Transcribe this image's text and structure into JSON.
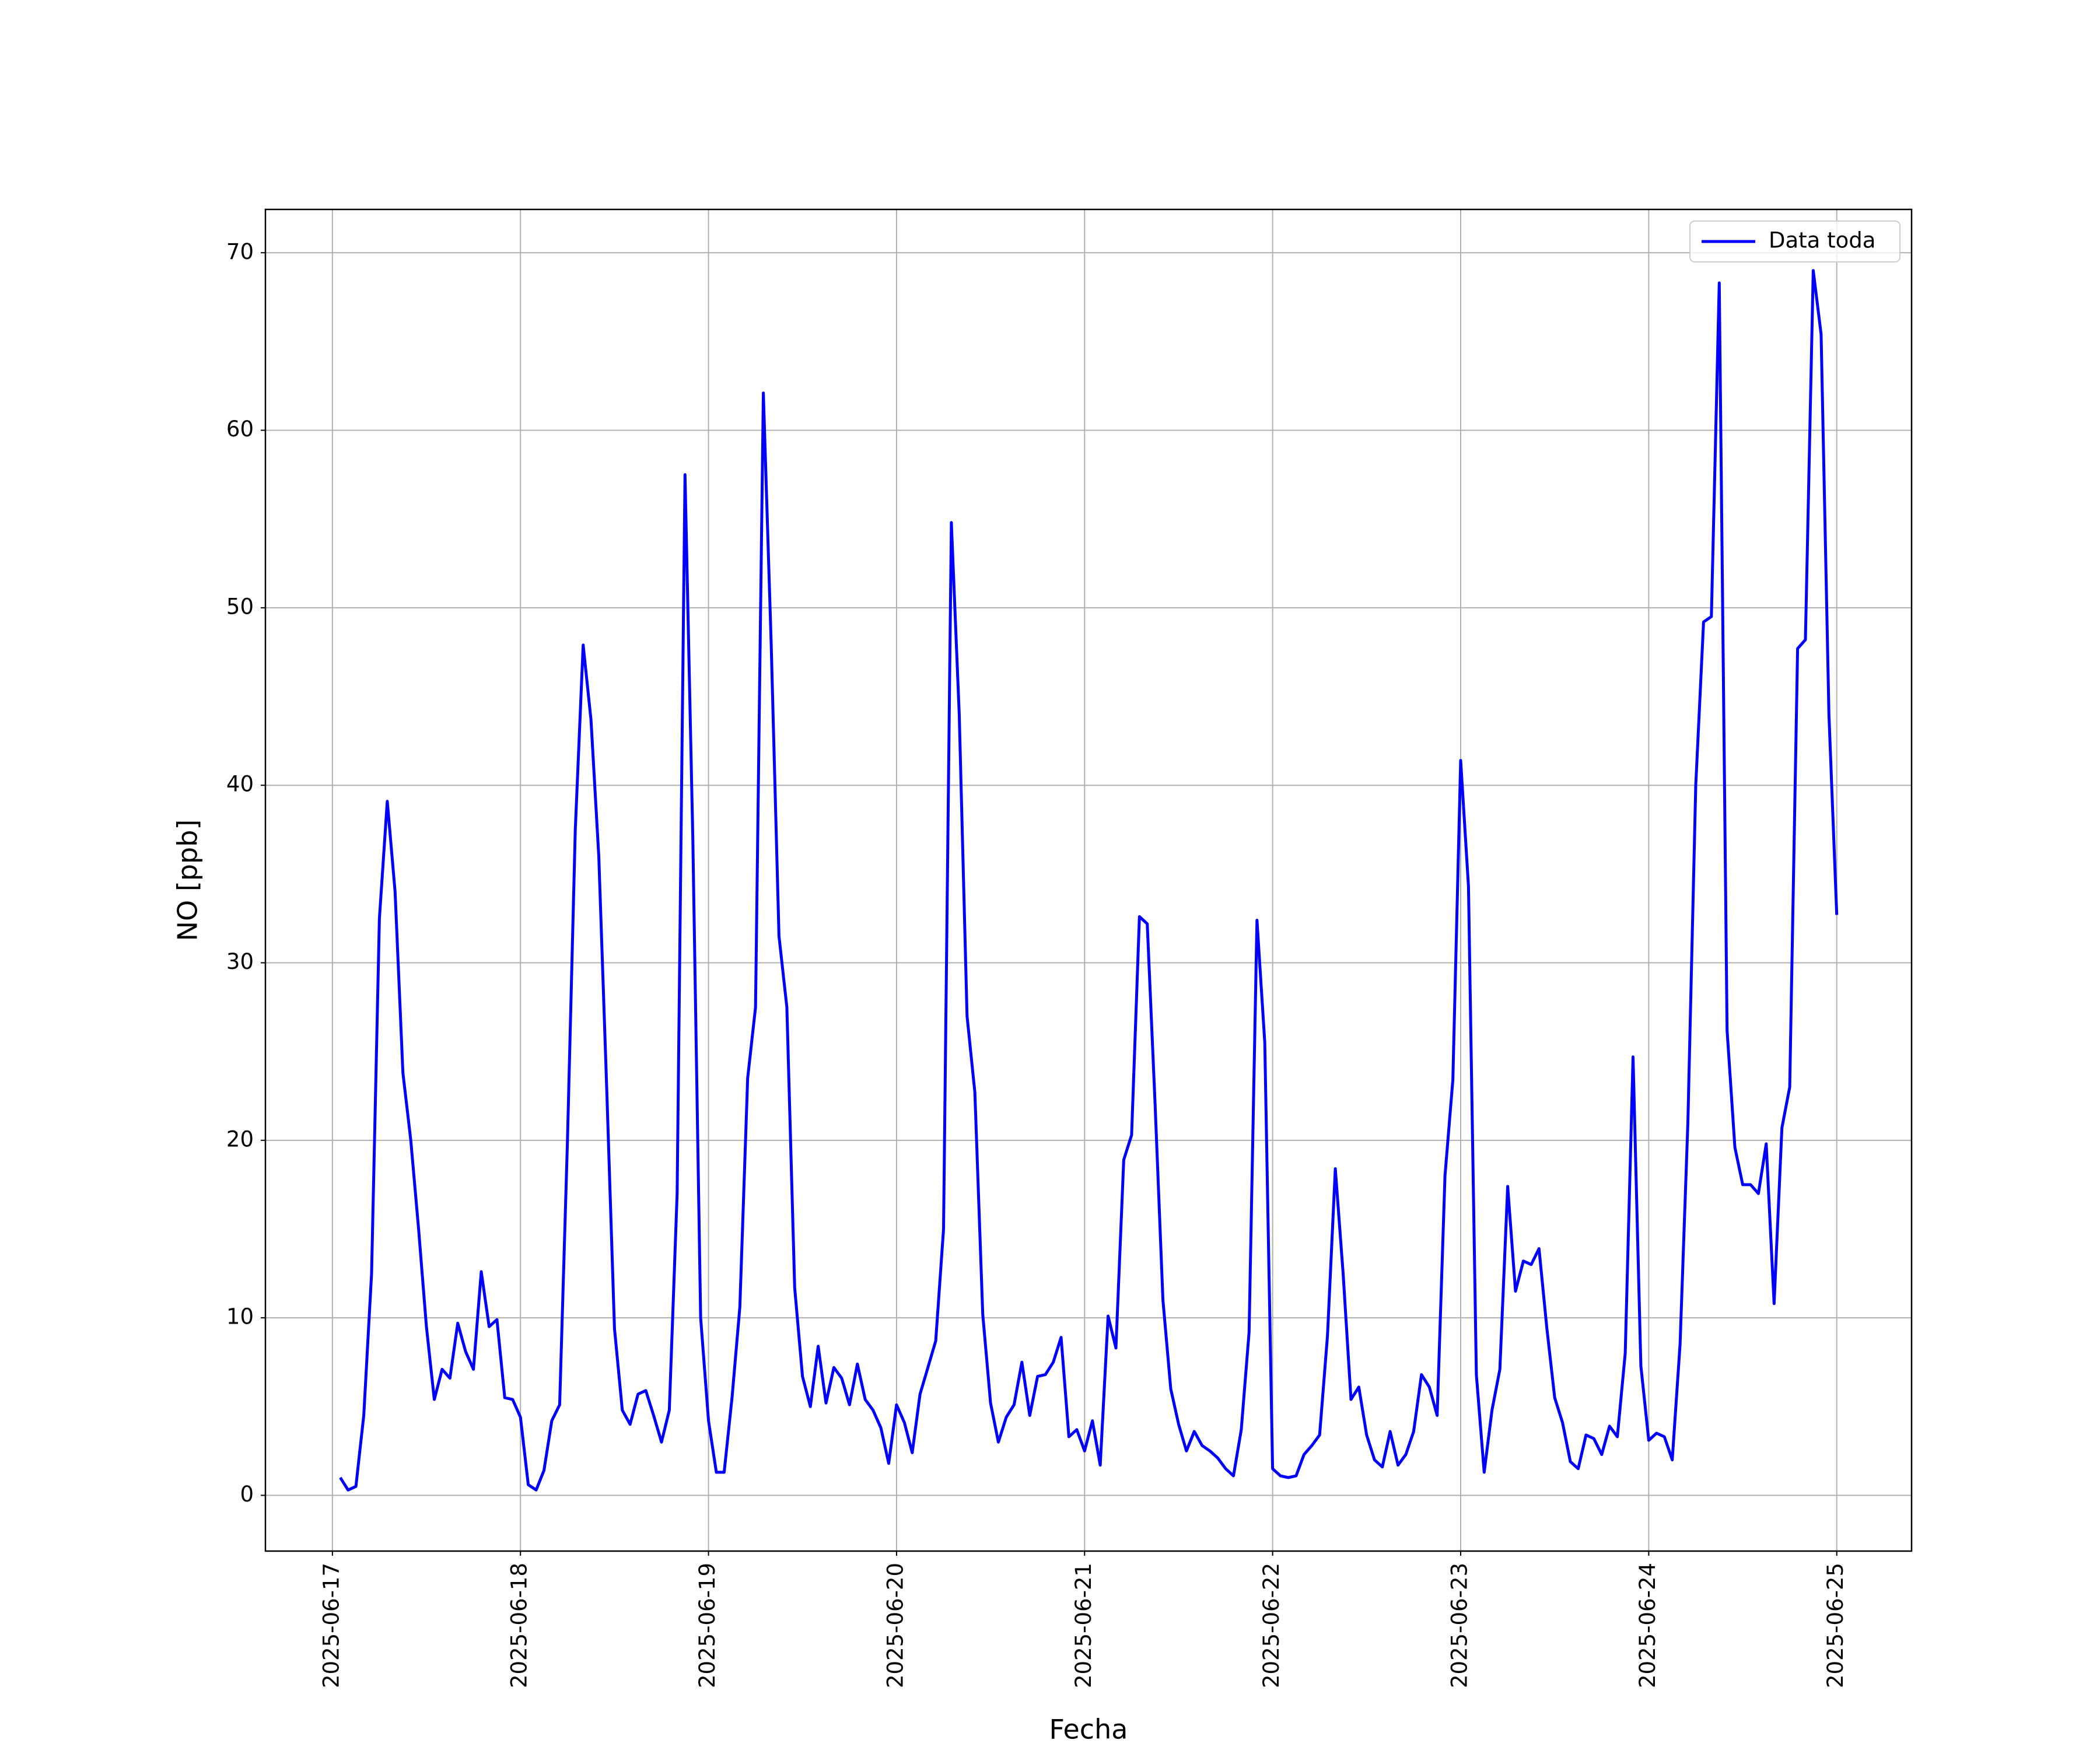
{
  "chart_data": {
    "type": "line",
    "xlabel": "Fecha",
    "ylabel": "NO [ppb]",
    "x": [
      "2025-06-17 01:00",
      "2025-06-17 02:00",
      "2025-06-17 03:00",
      "2025-06-17 04:00",
      "2025-06-17 05:00",
      "2025-06-17 06:00",
      "2025-06-17 07:00",
      "2025-06-17 08:00",
      "2025-06-17 09:00",
      "2025-06-17 10:00",
      "2025-06-17 11:00",
      "2025-06-17 12:00",
      "2025-06-17 13:00",
      "2025-06-17 14:00",
      "2025-06-17 15:00",
      "2025-06-17 16:00",
      "2025-06-17 17:00",
      "2025-06-17 18:00",
      "2025-06-17 19:00",
      "2025-06-17 20:00",
      "2025-06-17 21:00",
      "2025-06-17 22:00",
      "2025-06-17 23:00",
      "2025-06-18 00:00",
      "2025-06-18 01:00",
      "2025-06-18 02:00",
      "2025-06-18 03:00",
      "2025-06-18 04:00",
      "2025-06-18 05:00",
      "2025-06-18 06:00",
      "2025-06-18 07:00",
      "2025-06-18 08:00",
      "2025-06-18 09:00",
      "2025-06-18 10:00",
      "2025-06-18 11:00",
      "2025-06-18 12:00",
      "2025-06-18 13:00",
      "2025-06-18 14:00",
      "2025-06-18 15:00",
      "2025-06-18 16:00",
      "2025-06-18 17:00",
      "2025-06-18 18:00",
      "2025-06-18 19:00",
      "2025-06-18 20:00",
      "2025-06-18 21:00",
      "2025-06-18 22:00",
      "2025-06-18 23:00",
      "2025-06-19 00:00",
      "2025-06-19 01:00",
      "2025-06-19 02:00",
      "2025-06-19 03:00",
      "2025-06-19 04:00",
      "2025-06-19 05:00",
      "2025-06-19 06:00",
      "2025-06-19 07:00",
      "2025-06-19 08:00",
      "2025-06-19 09:00",
      "2025-06-19 10:00",
      "2025-06-19 11:00",
      "2025-06-19 12:00",
      "2025-06-19 13:00",
      "2025-06-19 14:00",
      "2025-06-19 15:00",
      "2025-06-19 16:00",
      "2025-06-19 17:00",
      "2025-06-19 18:00",
      "2025-06-19 19:00",
      "2025-06-19 20:00",
      "2025-06-19 21:00",
      "2025-06-19 22:00",
      "2025-06-19 23:00",
      "2025-06-20 00:00",
      "2025-06-20 01:00",
      "2025-06-20 02:00",
      "2025-06-20 03:00",
      "2025-06-20 04:00",
      "2025-06-20 05:00",
      "2025-06-20 06:00",
      "2025-06-20 07:00",
      "2025-06-20 08:00",
      "2025-06-20 09:00",
      "2025-06-20 10:00",
      "2025-06-20 11:00",
      "2025-06-20 12:00",
      "2025-06-20 13:00",
      "2025-06-20 14:00",
      "2025-06-20 15:00",
      "2025-06-20 16:00",
      "2025-06-20 17:00",
      "2025-06-20 18:00",
      "2025-06-20 19:00",
      "2025-06-20 20:00",
      "2025-06-20 21:00",
      "2025-06-20 22:00",
      "2025-06-20 23:00",
      "2025-06-21 00:00",
      "2025-06-21 01:00",
      "2025-06-21 02:00",
      "2025-06-21 03:00",
      "2025-06-21 04:00",
      "2025-06-21 05:00",
      "2025-06-21 06:00",
      "2025-06-21 07:00",
      "2025-06-21 08:00",
      "2025-06-21 09:00",
      "2025-06-21 10:00",
      "2025-06-21 11:00",
      "2025-06-21 12:00",
      "2025-06-21 13:00",
      "2025-06-21 14:00",
      "2025-06-21 15:00",
      "2025-06-21 16:00",
      "2025-06-21 17:00",
      "2025-06-21 18:00",
      "2025-06-21 19:00",
      "2025-06-21 20:00",
      "2025-06-21 21:00",
      "2025-06-21 22:00",
      "2025-06-21 23:00",
      "2025-06-22 00:00",
      "2025-06-22 01:00",
      "2025-06-22 02:00",
      "2025-06-22 03:00",
      "2025-06-22 04:00",
      "2025-06-22 05:00",
      "2025-06-22 06:00",
      "2025-06-22 07:00",
      "2025-06-22 08:00",
      "2025-06-22 09:00",
      "2025-06-22 10:00",
      "2025-06-22 11:00",
      "2025-06-22 12:00",
      "2025-06-22 13:00",
      "2025-06-22 14:00",
      "2025-06-22 15:00",
      "2025-06-22 16:00",
      "2025-06-22 17:00",
      "2025-06-22 18:00",
      "2025-06-22 19:00",
      "2025-06-22 20:00",
      "2025-06-22 21:00",
      "2025-06-22 22:00",
      "2025-06-22 23:00",
      "2025-06-23 00:00",
      "2025-06-23 01:00",
      "2025-06-23 02:00",
      "2025-06-23 03:00",
      "2025-06-23 04:00",
      "2025-06-23 05:00",
      "2025-06-23 06:00",
      "2025-06-23 07:00",
      "2025-06-23 08:00",
      "2025-06-23 09:00",
      "2025-06-23 10:00",
      "2025-06-23 11:00",
      "2025-06-23 12:00",
      "2025-06-23 13:00",
      "2025-06-23 14:00",
      "2025-06-23 15:00",
      "2025-06-23 16:00",
      "2025-06-23 17:00",
      "2025-06-23 18:00",
      "2025-06-23 19:00",
      "2025-06-23 20:00",
      "2025-06-23 21:00",
      "2025-06-23 22:00",
      "2025-06-23 23:00",
      "2025-06-24 00:00",
      "2025-06-24 01:00",
      "2025-06-24 02:00",
      "2025-06-24 03:00",
      "2025-06-24 04:00",
      "2025-06-24 05:00",
      "2025-06-24 06:00",
      "2025-06-24 07:00",
      "2025-06-24 08:00",
      "2025-06-24 09:00",
      "2025-06-24 10:00",
      "2025-06-24 11:00",
      "2025-06-24 12:00",
      "2025-06-24 13:00",
      "2025-06-24 14:00",
      "2025-06-24 15:00",
      "2025-06-24 16:00",
      "2025-06-24 17:00",
      "2025-06-24 18:00",
      "2025-06-24 19:00",
      "2025-06-24 20:00",
      "2025-06-24 21:00",
      "2025-06-24 22:00",
      "2025-06-24 23:00",
      "2025-06-25 00:00"
    ],
    "series": [
      {
        "name": "Data toda",
        "color": "#0000ff",
        "values": [
          1.0,
          0.3,
          0.5,
          4.5,
          12.5,
          32.5,
          39.1,
          34,
          23.8,
          20,
          15,
          9.5,
          5.4,
          7.1,
          6.6,
          9.7,
          8.1,
          7.1,
          12.6,
          9.5,
          9.9,
          5.5,
          5.4,
          4.4,
          0.6,
          0.3,
          1.4,
          4.2,
          5.1,
          20,
          37.5,
          47.9,
          43.7,
          36,
          23,
          9.4,
          4.8,
          4.0,
          5.7,
          5.9,
          4.5,
          3.0,
          4.8,
          17,
          57.5,
          37,
          10,
          4.2,
          1.3,
          1.3,
          5.5,
          10.6,
          23.5,
          27.5,
          62.1,
          48,
          31.5,
          27.5,
          11.7,
          6.7,
          5.0,
          8.4,
          5.2,
          7.2,
          6.6,
          5.1,
          7.4,
          5.4,
          4.8,
          3.8,
          1.8,
          5.1,
          4.1,
          2.4,
          5.7,
          7.2,
          8.7,
          15,
          54.8,
          44,
          27,
          22.7,
          10.2,
          5.2,
          3.0,
          4.4,
          5.1,
          7.5,
          4.5,
          6.7,
          6.8,
          7.5,
          8.9,
          3.3,
          3.7,
          2.5,
          4.2,
          1.7,
          10.1,
          8.3,
          18.9,
          20.3,
          32.6,
          32.2,
          22,
          11,
          6.0,
          4.0,
          2.5,
          3.6,
          2.8,
          2.5,
          2.1,
          1.5,
          1.1,
          3.7,
          9.2,
          32.4,
          25.5,
          1.5,
          1.1,
          1.0,
          1.1,
          2.3,
          2.8,
          3.4,
          9,
          18.4,
          12.5,
          5.4,
          6.1,
          3.4,
          2.0,
          1.6,
          3.6,
          1.7,
          2.3,
          3.6,
          6.8,
          6.1,
          4.5,
          18,
          23.4,
          41.4,
          34.3,
          6.8,
          1.3,
          4.8,
          7.1,
          17.4,
          11.5,
          13.2,
          13.0,
          13.9,
          9.4,
          5.5,
          4.1,
          1.9,
          1.5,
          3.4,
          3.2,
          2.3,
          3.9,
          3.3,
          8,
          24.7,
          7.3,
          3.1,
          3.5,
          3.3,
          2.0,
          8.5,
          21,
          40,
          49.2,
          49.5,
          68.3,
          26.2,
          19.6,
          17.5,
          17.5,
          17.0,
          19.8,
          10.8,
          20.7,
          23,
          47.7,
          48.2,
          69,
          65.4,
          44,
          32.7
        ]
      }
    ],
    "xlim": [
      "2025-06-16 15:27",
      "2025-06-25 09:33"
    ],
    "xticks": [
      "2025-06-17",
      "2025-06-18",
      "2025-06-19",
      "2025-06-20",
      "2025-06-21",
      "2025-06-22",
      "2025-06-23",
      "2025-06-24",
      "2025-06-25"
    ],
    "ylim": [
      -3.14,
      72.44
    ],
    "yticks": [
      0,
      10,
      20,
      30,
      40,
      50,
      60,
      70
    ],
    "grid": true,
    "legend": "upper right"
  }
}
